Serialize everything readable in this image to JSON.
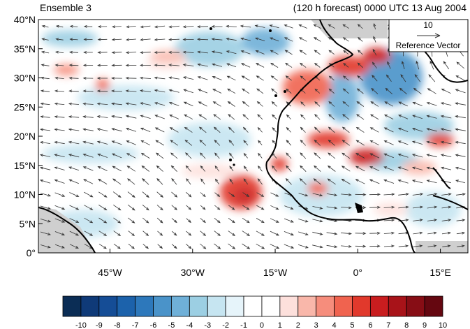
{
  "header": {
    "left_title": "Ensemble 3",
    "right_title": "(120 h forecast) 0000 UTC 13 Aug 2004"
  },
  "map": {
    "lat_ticks": [
      "40°N",
      "35°N",
      "30°N",
      "25°N",
      "20°N",
      "15°N",
      "10°N",
      "5°N",
      "0°"
    ],
    "lon_ticks": [
      "45°W",
      "30°W",
      "15°W",
      "0°",
      "15°E"
    ],
    "lat_values": [
      40,
      35,
      30,
      25,
      20,
      15,
      10,
      5,
      0
    ],
    "lon_values": [
      -45,
      -30,
      -15,
      0,
      15
    ],
    "lat_range": [
      0,
      40
    ],
    "lon_range": [
      -58,
      20
    ],
    "colors": {
      "coast": "#000000",
      "land_mask": "#cfcfcf",
      "vector": "#333333"
    }
  },
  "reference_vector": {
    "magnitude_label": "10",
    "caption": "Reference Vector"
  },
  "colorbar": {
    "labels": [
      "-10",
      "-9",
      "-8",
      "-7",
      "-6",
      "-5",
      "-4",
      "-3",
      "-2",
      "-1",
      "0",
      "1",
      "2",
      "3",
      "4",
      "5",
      "6",
      "7",
      "8",
      "9",
      "10"
    ],
    "colors": [
      "#0b2d55",
      "#0f3a78",
      "#154d96",
      "#1c62ab",
      "#2d78bb",
      "#4a93c9",
      "#6fb0d8",
      "#9ccfe3",
      "#c6e5f1",
      "#e6f4fa",
      "#ffffff",
      "#ffffff",
      "#fde0dc",
      "#f9b7aa",
      "#f68d7c",
      "#f0634f",
      "#e1392c",
      "#c91d1f",
      "#a81319",
      "#870d15",
      "#650710"
    ]
  }
}
